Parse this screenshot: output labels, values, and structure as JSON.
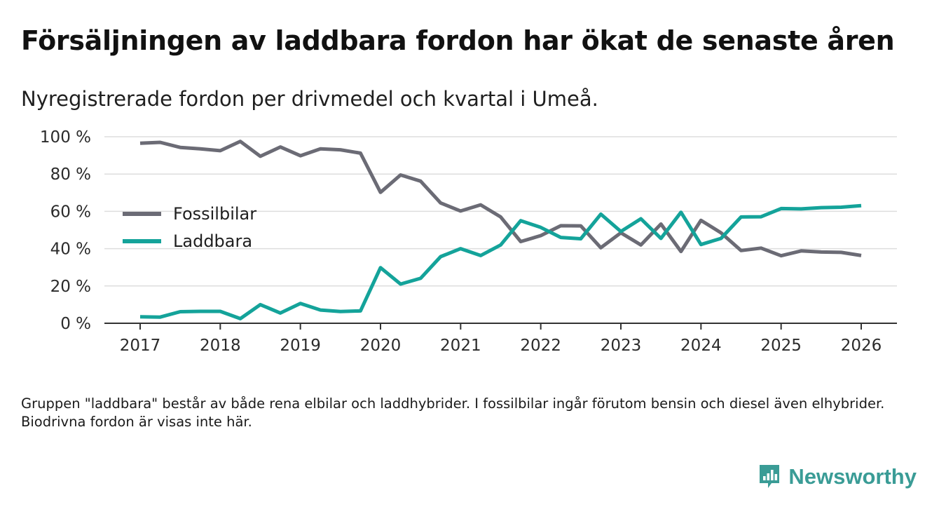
{
  "title": "Försäljningen av laddbara fordon har ökat de senaste åren",
  "subtitle": "Nyregistrerade fordon per drivmedel och kvartal i Umeå.",
  "footnote": "Gruppen \"laddbara\" består av både rena elbilar och laddhybrider. I fossilbilar ingår förutom bensin och diesel även elhybrider. Biodrivna fordon är visas inte här.",
  "brand": {
    "name": "Newsworthy",
    "icon": "newsworthy-logo-icon"
  },
  "colors": {
    "fossil": "#6b6b75",
    "laddbara": "#14a39a",
    "grid": "#dddddd",
    "axis": "#333333",
    "brand": "#3a9c96"
  },
  "chart_data": {
    "type": "line",
    "title": "Försäljningen av laddbara fordon har ökat de senaste åren",
    "xlabel": "",
    "ylabel": "",
    "xlim": [
      2016.55,
      2026.45
    ],
    "ylim": [
      0,
      100
    ],
    "yticks": [
      0,
      20,
      40,
      60,
      80,
      100
    ],
    "ytick_labels": [
      "0 %",
      "20 %",
      "40 %",
      "60 %",
      "80 %",
      "100 %"
    ],
    "xticks": [
      2017,
      2018,
      2019,
      2020,
      2021,
      2022,
      2023,
      2024,
      2025,
      2026
    ],
    "xtick_labels": [
      "2017",
      "2018",
      "2019",
      "2020",
      "2021",
      "2022",
      "2023",
      "2024",
      "2025",
      "2026"
    ],
    "grid": true,
    "legend_position": "left",
    "x": [
      2017,
      2017.25,
      2017.5,
      2017.75,
      2018,
      2018.25,
      2018.5,
      2018.75,
      2019,
      2019.25,
      2019.5,
      2019.75,
      2020,
      2020.25,
      2020.5,
      2020.75,
      2021,
      2021.25,
      2021.5,
      2021.75,
      2022,
      2022.25,
      2022.5,
      2022.75,
      2023,
      2023.25,
      2023.5,
      2023.75,
      2024,
      2024.25,
      2024.5,
      2024.75,
      2025,
      2025.25,
      2025.5,
      2025.75,
      2026
    ],
    "series": [
      {
        "name": "Fossilbilar",
        "color": "#6b6b75",
        "values": [
          96.5,
          97,
          94.3,
          93.5,
          92.5,
          97.5,
          89.5,
          94.5,
          89.8,
          93.5,
          93,
          91.2,
          70.2,
          79.5,
          76.2,
          64.5,
          60.2,
          63.5,
          57,
          43.8,
          47,
          52.3,
          52.2,
          40.5,
          48.5,
          42,
          53.2,
          38.5,
          55.2,
          48.5,
          39,
          40.3,
          36.2,
          38.8,
          38.2,
          38,
          36.3
        ]
      },
      {
        "name": "Laddbara",
        "color": "#14a39a",
        "values": [
          3.5,
          3.3,
          6.2,
          6.4,
          6.4,
          2.5,
          10,
          5.5,
          10.6,
          7.1,
          6.3,
          6.6,
          29.8,
          21,
          24.1,
          35.7,
          40,
          36.3,
          42,
          55,
          51.4,
          46,
          45.3,
          58.5,
          49.2,
          56,
          45.5,
          59.5,
          42.2,
          45.5,
          57,
          57.1,
          61.5,
          61.3,
          62,
          62.2,
          63.1
        ]
      }
    ]
  }
}
